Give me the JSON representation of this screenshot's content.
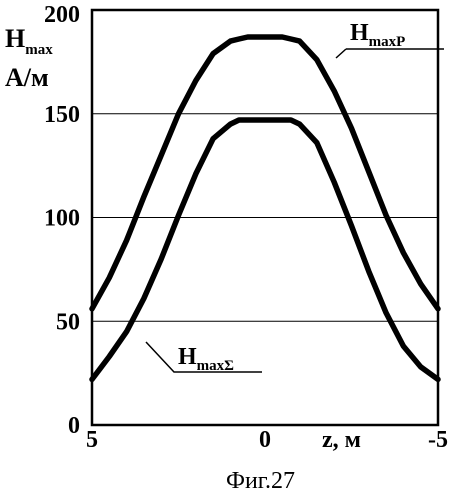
{
  "chart_data": {
    "type": "line",
    "ylabel": {
      "main": "H",
      "sub": "max",
      "unit": "А/м"
    },
    "xlabel": "z,  м",
    "caption": "Фиг.27",
    "x_reversed": true,
    "xlim": [
      -5,
      5
    ],
    "ylim": [
      0,
      200
    ],
    "xticks": [
      5,
      0,
      -5
    ],
    "xtick_labels": [
      "5",
      "0",
      "-5"
    ],
    "yticks": [
      0,
      50,
      100,
      150,
      200
    ],
    "ytick_labels": [
      "0",
      "50",
      "100",
      "150",
      "200"
    ],
    "grid": "horizontal",
    "series": [
      {
        "name": "H",
        "name_sub": "maxP",
        "x": [
          5,
          4.5,
          4,
          3.5,
          3,
          2.5,
          2,
          1.5,
          1,
          0.75,
          0.5,
          0,
          -0.5,
          -0.75,
          -1,
          -1.5,
          -2,
          -2.5,
          -3,
          -3.5,
          -4,
          -4.5,
          -5
        ],
        "y": [
          56,
          71,
          89,
          110,
          130,
          150,
          166,
          179,
          185,
          186,
          187,
          187,
          187,
          186,
          185,
          176,
          161,
          143,
          122,
          101,
          83,
          68,
          56
        ]
      },
      {
        "name": "H",
        "name_sub": "maxΣ",
        "x": [
          5,
          4.5,
          4,
          3.5,
          3,
          2.5,
          2,
          1.5,
          1,
          0.75,
          0.5,
          0,
          -0.5,
          -0.75,
          -1,
          -1.5,
          -2,
          -2.5,
          -3,
          -3.5,
          -4,
          -4.5,
          -5
        ],
        "y": [
          22,
          33,
          45,
          61,
          80,
          101,
          121,
          138,
          145,
          147,
          147,
          147,
          147,
          147,
          145,
          136,
          117,
          96,
          74,
          54,
          38,
          28,
          22
        ]
      }
    ]
  }
}
